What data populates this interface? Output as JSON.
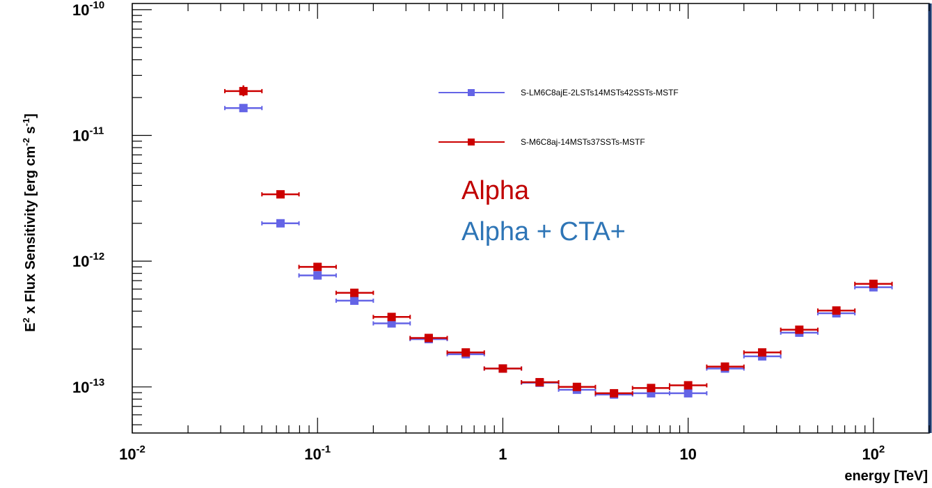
{
  "chart_data": {
    "type": "scatter",
    "title": "",
    "xlabel": "energy [TeV]",
    "ylabel_parts": [
      "E",
      "2",
      " x Flux Sensitivity [erg cm",
      "-2",
      " s",
      "-1",
      "]"
    ],
    "x_scale": "log",
    "y_scale": "log",
    "xlim": [
      0.01,
      200
    ],
    "ylim": [
      4.3e-14,
      1.12e-10
    ],
    "grid": false,
    "legend_position": "top-right",
    "x_tick_labels": [
      {
        "value": 0.01,
        "base": "10",
        "exp": "-2"
      },
      {
        "value": 0.1,
        "base": "10",
        "exp": "-1"
      },
      {
        "value": 1,
        "base": "1",
        "exp": ""
      },
      {
        "value": 10,
        "base": "10",
        "exp": ""
      },
      {
        "value": 100,
        "base": "10",
        "exp": "2"
      }
    ],
    "y_tick_labels": [
      {
        "value": 1e-13,
        "base": "10",
        "exp": "-13"
      },
      {
        "value": 1e-12,
        "base": "10",
        "exp": "-12"
      },
      {
        "value": 1e-11,
        "base": "10",
        "exp": "-11"
      },
      {
        "value": 1e-10,
        "base": "10",
        "exp": "-10"
      }
    ],
    "series": [
      {
        "name": "S-LM6C8ajE-2LSTs14MSTs42SSTs-MSTF",
        "color": "#6464e6",
        "points": [
          {
            "x": 0.0398,
            "y": 1.65e-11,
            "xlo": 0.0316,
            "xhi": 0.0501
          },
          {
            "x": 0.0631,
            "y": 2e-12,
            "xlo": 0.0501,
            "xhi": 0.0794
          },
          {
            "x": 0.1,
            "y": 7.7e-13,
            "xlo": 0.0794,
            "xhi": 0.126
          },
          {
            "x": 0.158,
            "y": 4.85e-13,
            "xlo": 0.126,
            "xhi": 0.2
          },
          {
            "x": 0.251,
            "y": 3.2e-13,
            "xlo": 0.2,
            "xhi": 0.316
          },
          {
            "x": 0.398,
            "y": 2.4e-13,
            "xlo": 0.316,
            "xhi": 0.501
          },
          {
            "x": 0.631,
            "y": 1.82e-13,
            "xlo": 0.501,
            "xhi": 0.794
          },
          {
            "x": 1.0,
            "y": 1.4e-13,
            "xlo": 0.794,
            "xhi": 1.26
          },
          {
            "x": 1.58,
            "y": 1.08e-13,
            "xlo": 1.26,
            "xhi": 2.0
          },
          {
            "x": 2.51,
            "y": 9.5e-14,
            "xlo": 2.0,
            "xhi": 3.16
          },
          {
            "x": 3.98,
            "y": 8.7e-14,
            "xlo": 3.16,
            "xhi": 5.01
          },
          {
            "x": 6.31,
            "y": 8.9e-14,
            "xlo": 5.01,
            "xhi": 7.94
          },
          {
            "x": 10.0,
            "y": 8.9e-14,
            "xlo": 7.94,
            "xhi": 12.6
          },
          {
            "x": 15.8,
            "y": 1.4e-13,
            "xlo": 12.6,
            "xhi": 20.0
          },
          {
            "x": 25.1,
            "y": 1.75e-13,
            "xlo": 20.0,
            "xhi": 31.6
          },
          {
            "x": 39.8,
            "y": 2.7e-13,
            "xlo": 31.6,
            "xhi": 50.1
          },
          {
            "x": 63.1,
            "y": 3.85e-13,
            "xlo": 50.1,
            "xhi": 79.4
          },
          {
            "x": 100.0,
            "y": 6.2e-13,
            "xlo": 79.4,
            "xhi": 126
          }
        ]
      },
      {
        "name": "S-M6C8aj-14MSTs37SSTs-MSTF",
        "color": "#cc0000",
        "points": [
          {
            "x": 0.0398,
            "y": 2.25e-11,
            "xlo": 0.0316,
            "xhi": 0.0501,
            "ylo": 2.05e-11,
            "yhi": 2.5e-11
          },
          {
            "x": 0.0631,
            "y": 3.4e-12,
            "xlo": 0.0501,
            "xhi": 0.0794
          },
          {
            "x": 0.1,
            "y": 9e-13,
            "xlo": 0.0794,
            "xhi": 0.126
          },
          {
            "x": 0.158,
            "y": 5.6e-13,
            "xlo": 0.126,
            "xhi": 0.2
          },
          {
            "x": 0.251,
            "y": 3.6e-13,
            "xlo": 0.2,
            "xhi": 0.316
          },
          {
            "x": 0.398,
            "y": 2.45e-13,
            "xlo": 0.316,
            "xhi": 0.501
          },
          {
            "x": 0.631,
            "y": 1.88e-13,
            "xlo": 0.501,
            "xhi": 0.794
          },
          {
            "x": 1.0,
            "y": 1.4e-13,
            "xlo": 0.794,
            "xhi": 1.26
          },
          {
            "x": 1.58,
            "y": 1.09e-13,
            "xlo": 1.26,
            "xhi": 2.0
          },
          {
            "x": 2.51,
            "y": 1e-13,
            "xlo": 2.0,
            "xhi": 3.16
          },
          {
            "x": 3.98,
            "y": 8.9e-14,
            "xlo": 3.16,
            "xhi": 5.01
          },
          {
            "x": 6.31,
            "y": 9.8e-14,
            "xlo": 5.01,
            "xhi": 7.94
          },
          {
            "x": 10.0,
            "y": 1.03e-13,
            "xlo": 7.94,
            "xhi": 12.6
          },
          {
            "x": 15.8,
            "y": 1.45e-13,
            "xlo": 12.6,
            "xhi": 20.0
          },
          {
            "x": 25.1,
            "y": 1.88e-13,
            "xlo": 20.0,
            "xhi": 31.6
          },
          {
            "x": 39.8,
            "y": 2.85e-13,
            "xlo": 31.6,
            "xhi": 50.1
          },
          {
            "x": 63.1,
            "y": 4.05e-13,
            "xlo": 50.1,
            "xhi": 79.4
          },
          {
            "x": 100.0,
            "y": 6.6e-13,
            "xlo": 79.4,
            "xhi": 126
          }
        ]
      }
    ]
  },
  "annotations": {
    "alpha": {
      "text": "Alpha",
      "color": "#c00000"
    },
    "alpha_cta": {
      "text": "Alpha + CTA+",
      "color": "#2e75b6"
    }
  }
}
